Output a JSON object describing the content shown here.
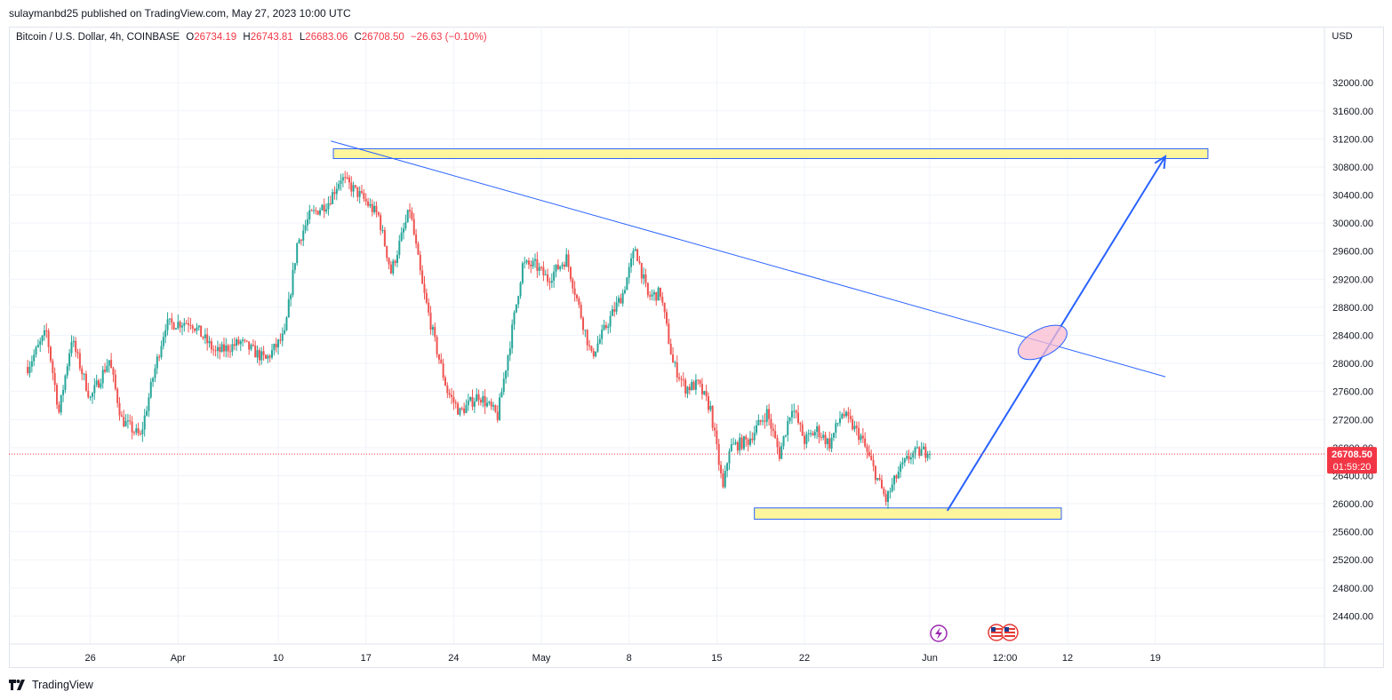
{
  "header": {
    "published_text": "sulaymanbd25 published on TradingView.com, May 27, 2023 10:00 UTC"
  },
  "legend": {
    "symbol": "Bitcoin / U.S. Dollar, 4h, COINBASE",
    "open_label": "O",
    "open": "26734.19",
    "high_label": "H",
    "high": "26743.81",
    "low_label": "L",
    "low": "26683.06",
    "close_label": "C",
    "close": "26708.50",
    "change": "−26.63 (−0.10%)"
  },
  "footer": {
    "brand": "TradingView"
  },
  "colors": {
    "up": "#26a69a",
    "down": "#ef5350",
    "trendline": "#2962ff",
    "zone_fill": "#fff59d",
    "zone_border": "#2962ff",
    "ellipse_fill": "#f8bbd0",
    "price_tag": "#f23645",
    "grid": "#f0f3fa",
    "axis_text": "#131722"
  },
  "chart_data": {
    "type": "candlestick",
    "symbol": "BTCUSD",
    "timeframe": "4h",
    "exchange": "COINBASE",
    "currency": "USD",
    "y_axis": {
      "ticks": [
        "32000.00",
        "31600.00",
        "31200.00",
        "30800.00",
        "30400.00",
        "30000.00",
        "29600.00",
        "29200.00",
        "28800.00",
        "28400.00",
        "28000.00",
        "27600.00",
        "27200.00",
        "26800.00",
        "26400.00",
        "26000.00",
        "25600.00",
        "25200.00",
        "24800.00",
        "24400.00"
      ],
      "range": [
        24000,
        32800
      ]
    },
    "x_axis": {
      "ticks": [
        "26",
        "Apr",
        "10",
        "17",
        "24",
        "May",
        "8",
        "15",
        "22",
        "Jun",
        "12:00",
        "12",
        "19"
      ],
      "tick_days": [
        25,
        32,
        40,
        47,
        54,
        61,
        68,
        75,
        82,
        92,
        98,
        103,
        110
      ],
      "day_range": [
        18.5,
        123.5
      ],
      "note_day_origin": "day 1 = Mar 1 2023"
    },
    "last_price": "26708.50",
    "countdown": "01:59:20",
    "last_price_value": 26708.5,
    "anchors": [
      {
        "day": 20.0,
        "price": 27950
      },
      {
        "day": 21.5,
        "price": 28450
      },
      {
        "day": 22.5,
        "price": 27300
      },
      {
        "day": 23.5,
        "price": 28350
      },
      {
        "day": 25.0,
        "price": 27500
      },
      {
        "day": 26.5,
        "price": 28050
      },
      {
        "day": 27.5,
        "price": 27200
      },
      {
        "day": 29.0,
        "price": 26950
      },
      {
        "day": 30.0,
        "price": 27800
      },
      {
        "day": 31.0,
        "price": 28550
      },
      {
        "day": 33.0,
        "price": 28600
      },
      {
        "day": 35.0,
        "price": 28150
      },
      {
        "day": 37.0,
        "price": 28300
      },
      {
        "day": 39.0,
        "price": 28050
      },
      {
        "day": 40.5,
        "price": 28400
      },
      {
        "day": 41.5,
        "price": 29700
      },
      {
        "day": 42.5,
        "price": 30100
      },
      {
        "day": 44.0,
        "price": 30300
      },
      {
        "day": 45.0,
        "price": 30650
      },
      {
        "day": 46.5,
        "price": 30400
      },
      {
        "day": 48.0,
        "price": 30100
      },
      {
        "day": 49.0,
        "price": 29300
      },
      {
        "day": 50.5,
        "price": 30200
      },
      {
        "day": 51.5,
        "price": 29100
      },
      {
        "day": 52.5,
        "price": 28300
      },
      {
        "day": 53.5,
        "price": 27600
      },
      {
        "day": 54.5,
        "price": 27300
      },
      {
        "day": 56.0,
        "price": 27550
      },
      {
        "day": 57.5,
        "price": 27250
      },
      {
        "day": 58.5,
        "price": 28300
      },
      {
        "day": 59.5,
        "price": 29400
      },
      {
        "day": 60.5,
        "price": 29400
      },
      {
        "day": 61.5,
        "price": 29200
      },
      {
        "day": 63.0,
        "price": 29500
      },
      {
        "day": 64.0,
        "price": 28800
      },
      {
        "day": 65.0,
        "price": 28100
      },
      {
        "day": 66.5,
        "price": 28650
      },
      {
        "day": 67.5,
        "price": 29000
      },
      {
        "day": 68.5,
        "price": 29650
      },
      {
        "day": 69.5,
        "price": 28950
      },
      {
        "day": 70.5,
        "price": 29000
      },
      {
        "day": 71.5,
        "price": 28000
      },
      {
        "day": 72.5,
        "price": 27650
      },
      {
        "day": 73.5,
        "price": 27700
      },
      {
        "day": 74.5,
        "price": 27350
      },
      {
        "day": 75.5,
        "price": 26200
      },
      {
        "day": 76.0,
        "price": 26800
      },
      {
        "day": 77.5,
        "price": 26900
      },
      {
        "day": 79.0,
        "price": 27300
      },
      {
        "day": 80.0,
        "price": 26700
      },
      {
        "day": 81.0,
        "price": 27400
      },
      {
        "day": 82.0,
        "price": 26900
      },
      {
        "day": 83.0,
        "price": 27050
      },
      {
        "day": 84.0,
        "price": 26850
      },
      {
        "day": 85.0,
        "price": 27300
      },
      {
        "day": 86.5,
        "price": 26950
      },
      {
        "day": 87.5,
        "price": 26500
      },
      {
        "day": 88.5,
        "price": 26050
      },
      {
        "day": 89.5,
        "price": 26450
      },
      {
        "day": 90.5,
        "price": 26700
      },
      {
        "day": 91.5,
        "price": 26750
      },
      {
        "day": 92.0,
        "price": 26710
      }
    ],
    "annotations": {
      "resistance_zone": {
        "day_start": 44.4,
        "day_end": 114.2,
        "price_low": 30920,
        "price_high": 31060
      },
      "support_zone": {
        "day_start": 78.0,
        "day_end": 102.5,
        "price_low": 25780,
        "price_high": 25940
      },
      "descending_trendline": {
        "from": {
          "day": 44.2,
          "price": 31170
        },
        "to": {
          "day": 110.8,
          "price": 27810
        }
      },
      "projection_arrow": {
        "from": {
          "day": 93.4,
          "price": 25900
        },
        "to": {
          "day": 110.8,
          "price": 30950
        }
      },
      "breakout_ellipse": {
        "day": 101.0,
        "price": 28300
      }
    },
    "event_icons": [
      "lightning-event",
      "us-flag-event",
      "us-flag-event"
    ]
  }
}
